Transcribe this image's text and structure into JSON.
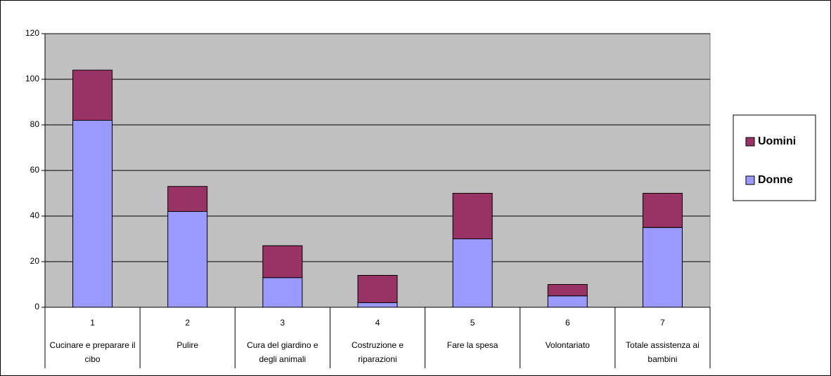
{
  "chart_data": {
    "type": "stacked_bar",
    "category_numbers": [
      1,
      2,
      3,
      4,
      5,
      6,
      7
    ],
    "categories": [
      "Cucinare e preparare il cibo",
      "Pulire",
      "Cura del giardino e degli animali",
      "Costruzione e riparazioni",
      "Fare la spesa",
      "Volontariato",
      "Totale assistenza ai bambini"
    ],
    "series": [
      {
        "name": "Donne",
        "color": "#9999ff",
        "values": [
          82,
          42,
          13,
          2,
          30,
          5,
          35
        ]
      },
      {
        "name": "Uomini",
        "color": "#993366",
        "values": [
          22,
          11,
          14,
          12,
          20,
          5,
          15
        ]
      }
    ],
    "ylim": [
      0,
      120
    ],
    "yticks": [
      0,
      20,
      40,
      60,
      80,
      100,
      120
    ],
    "grid": true,
    "legend": "right",
    "plot_background": "#c0c0c0"
  }
}
